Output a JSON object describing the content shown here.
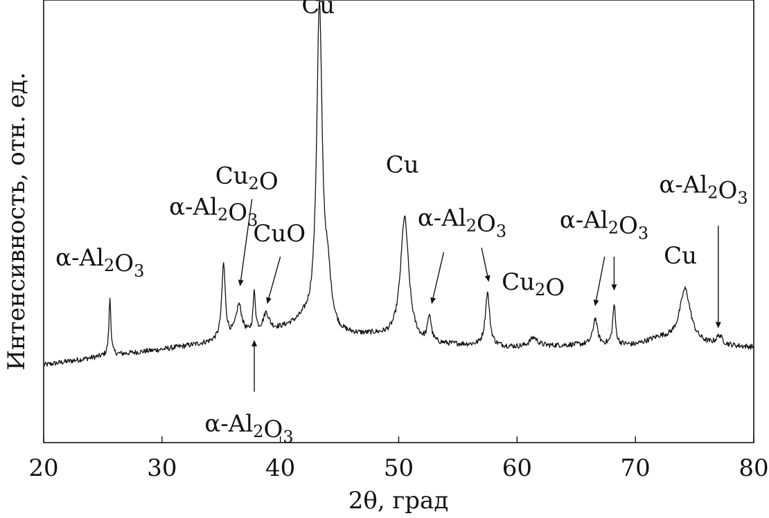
{
  "chart_data": {
    "type": "line",
    "title": "",
    "xlabel": "2θ, град",
    "ylabel": "Интенсивность, отн. ед.",
    "xlim": [
      20,
      80
    ],
    "ylim": [
      0,
      100
    ],
    "xticks": [
      20,
      30,
      40,
      50,
      60,
      70,
      80
    ],
    "grid": false,
    "line_color": "#111111",
    "noise_amplitude": 0.6,
    "baseline": [
      {
        "x": 20,
        "y": 17.5
      },
      {
        "x": 25,
        "y": 19.5
      },
      {
        "x": 30,
        "y": 21
      },
      {
        "x": 34,
        "y": 22.5
      },
      {
        "x": 38,
        "y": 24.5
      },
      {
        "x": 40,
        "y": 25.5
      },
      {
        "x": 42,
        "y": 27
      },
      {
        "x": 45,
        "y": 24
      },
      {
        "x": 48,
        "y": 24
      },
      {
        "x": 52,
        "y": 22
      },
      {
        "x": 55,
        "y": 22
      },
      {
        "x": 60,
        "y": 21.5
      },
      {
        "x": 65,
        "y": 22
      },
      {
        "x": 70,
        "y": 22
      },
      {
        "x": 72,
        "y": 23.5
      },
      {
        "x": 76,
        "y": 22
      },
      {
        "x": 80,
        "y": 21.5
      }
    ],
    "peaks": [
      {
        "x": 25.6,
        "height": 13,
        "width": 0.1,
        "phase": "α-Al2O3"
      },
      {
        "x": 35.2,
        "height": 17,
        "width": 0.18,
        "phase": "α-Al2O3"
      },
      {
        "x": 36.5,
        "height": 7,
        "width": 0.3,
        "phase": "Cu2O"
      },
      {
        "x": 37.8,
        "height": 9,
        "width": 0.12,
        "phase": "α-Al2O3"
      },
      {
        "x": 38.8,
        "height": 4,
        "width": 0.3,
        "phase": "CuO"
      },
      {
        "x": 43.3,
        "height": 72,
        "width": 0.28,
        "phase": "Cu"
      },
      {
        "x": 44.0,
        "height": 10,
        "width": 0.35,
        "phase": "Cu"
      },
      {
        "x": 50.5,
        "height": 28,
        "width": 0.42,
        "phase": "Cu"
      },
      {
        "x": 52.6,
        "height": 6,
        "width": 0.18,
        "phase": "α-Al2O3"
      },
      {
        "x": 57.5,
        "height": 12,
        "width": 0.22,
        "phase": "α-Al2O3"
      },
      {
        "x": 61.4,
        "height": 2,
        "width": 0.4,
        "phase": "Cu2O"
      },
      {
        "x": 66.6,
        "height": 6,
        "width": 0.22,
        "phase": "α-Al2O3"
      },
      {
        "x": 68.2,
        "height": 9,
        "width": 0.14,
        "phase": "α-Al2O3"
      },
      {
        "x": 74.2,
        "height": 12,
        "width": 0.55,
        "phase": "Cu"
      },
      {
        "x": 77.1,
        "height": 2,
        "width": 0.3,
        "phase": "α-Al2O3"
      }
    ],
    "annotations": [
      {
        "parts": [
          {
            "t": "α-Al"
          },
          {
            "t": "2",
            "sub": true
          },
          {
            "t": "O"
          },
          {
            "t": "3",
            "sub": true
          }
        ],
        "at": {
          "x": 21.0,
          "y": 40
        },
        "arrow": null
      },
      {
        "parts": [
          {
            "t": "α-Al"
          },
          {
            "t": "2",
            "sub": true
          },
          {
            "t": "O"
          },
          {
            "t": "3",
            "sub": true
          }
        ],
        "at": {
          "x": 30.6,
          "y": 51.5
        },
        "arrow": null
      },
      {
        "parts": [
          {
            "t": "Cu"
          },
          {
            "t": "2",
            "sub": true
          },
          {
            "t": "O"
          }
        ],
        "at": {
          "x": 34.5,
          "y": 58.5
        },
        "arrow": {
          "from": {
            "x": 37.6,
            "y": 55
          },
          "to": {
            "x": 36.6,
            "y": 35.5
          }
        }
      },
      {
        "parts": [
          {
            "t": "CuO"
          }
        ],
        "at": {
          "x": 37.7,
          "y": 45.5
        },
        "arrow": {
          "from": {
            "x": 40.0,
            "y": 42
          },
          "to": {
            "x": 38.9,
            "y": 31.5
          }
        }
      },
      {
        "parts": [
          {
            "t": "α-Al"
          },
          {
            "t": "2",
            "sub": true
          },
          {
            "t": "O"
          },
          {
            "t": "3",
            "sub": true
          }
        ],
        "at": {
          "x": 33.6,
          "y": 2.5
        },
        "arrow": {
          "from": {
            "x": 37.8,
            "y": 11.5
          },
          "to": {
            "x": 37.8,
            "y": 23
          }
        }
      },
      {
        "parts": [
          {
            "t": "Cu"
          }
        ],
        "at": {
          "x": 41.8,
          "y": 97
        },
        "arrow": null
      },
      {
        "parts": [
          {
            "t": "Cu"
          }
        ],
        "at": {
          "x": 48.9,
          "y": 61
        },
        "arrow": null
      },
      {
        "parts": [
          {
            "t": "α-Al"
          },
          {
            "t": "2",
            "sub": true
          },
          {
            "t": "O"
          },
          {
            "t": "3",
            "sub": true
          }
        ],
        "at": {
          "x": 51.6,
          "y": 49
        },
        "arrow": {
          "from": {
            "x": 53.8,
            "y": 43
          },
          "to": {
            "x": 52.8,
            "y": 31.5
          }
        }
      },
      {
        "parts": [
          {
            "t": "Cu"
          },
          {
            "t": "2",
            "sub": true
          },
          {
            "t": "O"
          }
        ],
        "at": {
          "x": 58.7,
          "y": 34.5
        },
        "arrow": null
      },
      {
        "parts": [
          {
            "t": "α-Al"
          },
          {
            "t": "2",
            "sub": true
          },
          {
            "t": "O"
          },
          {
            "t": "3",
            "sub": true
          }
        ],
        "at": {
          "x": 63.6,
          "y": 48.5
        },
        "arrow": {
          "from": {
            "x": 67.4,
            "y": 42
          },
          "to": {
            "x": 66.6,
            "y": 31
          }
        }
      },
      {
        "parts": [
          {
            "t": "Cu"
          }
        ],
        "at": {
          "x": 72.4,
          "y": 40.5
        },
        "arrow": null
      },
      {
        "parts": [
          {
            "t": "α-Al"
          },
          {
            "t": "2",
            "sub": true
          },
          {
            "t": "O"
          },
          {
            "t": "3",
            "sub": true
          }
        ],
        "at": {
          "x": 72.0,
          "y": 56.5
        },
        "arrow": {
          "from": {
            "x": 77.0,
            "y": 49
          },
          "to": {
            "x": 77.0,
            "y": 26
          }
        }
      }
    ],
    "extra_arrows": [
      {
        "from": {
          "x": 57.0,
          "y": 44
        },
        "to": {
          "x": 57.6,
          "y": 36.5
        }
      },
      {
        "from": {
          "x": 68.2,
          "y": 42
        },
        "to": {
          "x": 68.2,
          "y": 34.5
        }
      }
    ]
  }
}
